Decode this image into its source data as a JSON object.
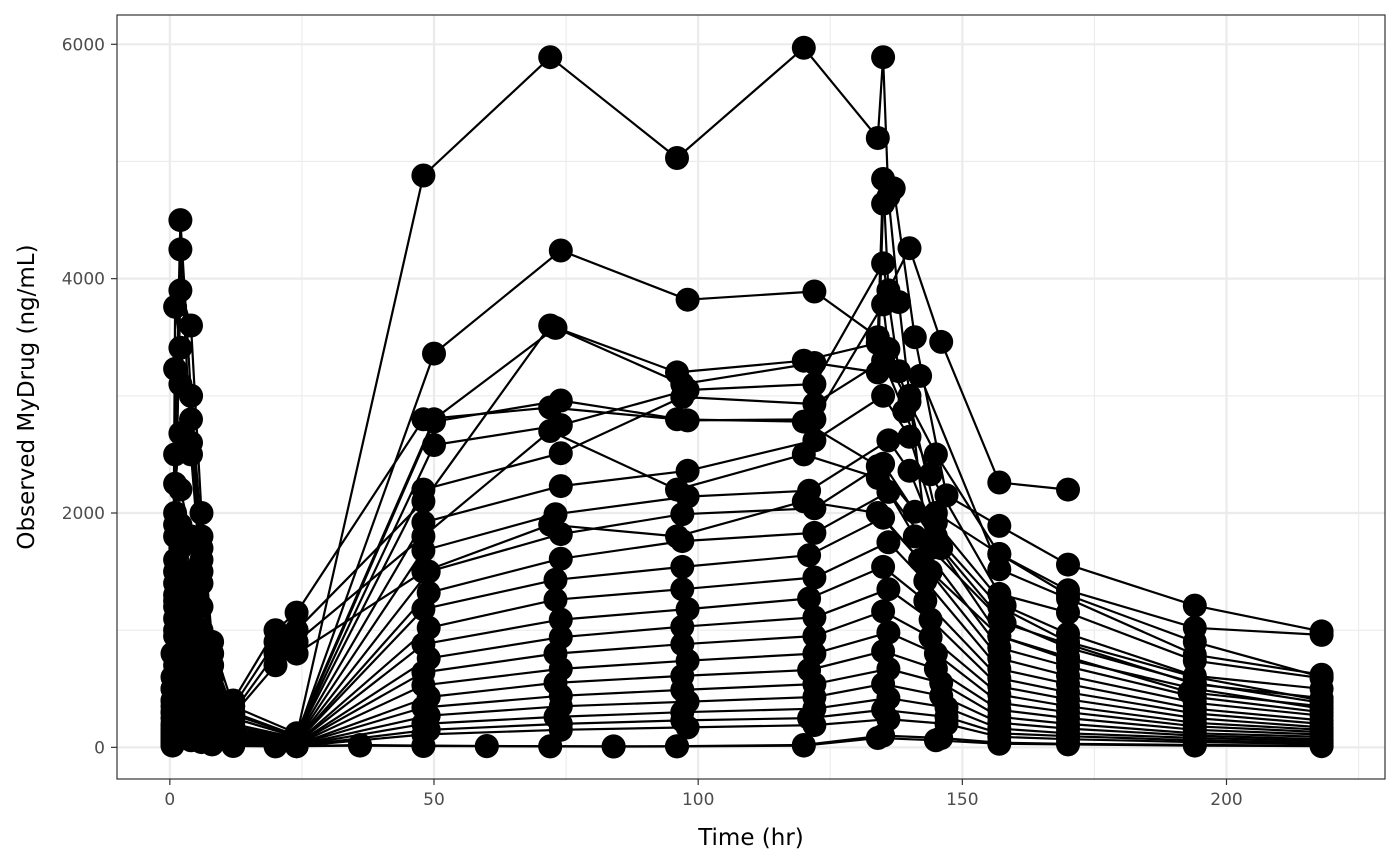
{
  "chart_data": {
    "type": "line",
    "xlabel": "Time (hr)",
    "ylabel": "Observed MyDrug (ng/mL)",
    "xlim": [
      -10,
      230
    ],
    "ylim": [
      -270,
      6250
    ],
    "x_ticks": [
      0,
      50,
      100,
      150,
      200
    ],
    "y_ticks": [
      0,
      2000,
      4000,
      6000
    ],
    "grid": true,
    "legend": "none",
    "colors": {
      "line": "#000000",
      "point": "#000000",
      "grid": "#ebebeb",
      "panel_border": "#333333"
    },
    "series": [
      {
        "x": [
          0.5,
          1,
          2,
          4,
          6,
          8,
          12,
          24,
          48,
          72,
          96,
          120,
          134,
          135,
          136,
          138,
          140,
          144
        ],
        "y": [
          800,
          2500,
          4500,
          3000,
          1800,
          800,
          300,
          100,
          4880,
          5890,
          5030,
          5970,
          5200,
          5890,
          4700,
          3800,
          3000,
          1500
        ]
      },
      {
        "x": [
          0.5,
          1,
          2,
          4,
          6,
          8,
          12,
          24,
          50,
          74,
          98,
          122,
          134,
          135,
          136,
          140,
          146,
          157,
          170
        ],
        "y": [
          600,
          2000,
          4250,
          2600,
          1500,
          700,
          250,
          90,
          3360,
          4240,
          3820,
          3890,
          3500,
          4850,
          3900,
          4260,
          3460,
          2260,
          2200
        ]
      },
      {
        "x": [
          0.5,
          1,
          2,
          4,
          6,
          8,
          12,
          24,
          50,
          73,
          97,
          122,
          134,
          135,
          137,
          141,
          147,
          157,
          170,
          194,
          218
        ],
        "y": [
          500,
          1800,
          3900,
          3600,
          2000,
          900,
          350,
          120,
          2800,
          3580,
          3100,
          3280,
          3200,
          4640,
          4770,
          3500,
          2150,
          1890,
          1560,
          1210,
          990
        ]
      },
      {
        "x": [
          0.5,
          1,
          2,
          4,
          6,
          8,
          12,
          24,
          50,
          74,
          98,
          122,
          135,
          136,
          140,
          145,
          157,
          170,
          194,
          218
        ],
        "y": [
          400,
          3760,
          3410,
          2800,
          1600,
          700,
          280,
          100,
          2780,
          2960,
          2790,
          2800,
          3780,
          3400,
          2950,
          2000,
          1650,
          1340,
          1020,
          960
        ]
      },
      {
        "x": [
          0.5,
          1,
          2,
          4,
          6,
          8,
          12,
          24,
          50,
          74,
          98,
          122,
          135,
          138,
          142,
          157,
          170,
          194,
          218
        ],
        "y": [
          300,
          3230,
          3100,
          3000,
          1700,
          800,
          250,
          90,
          2580,
          2750,
          3050,
          3100,
          4130,
          3210,
          3170,
          1520,
          1270,
          790,
          620
        ]
      },
      {
        "x": [
          0.5,
          1,
          2,
          4,
          6,
          8,
          12,
          24,
          48,
          74,
          97,
          122,
          135,
          139,
          144,
          157,
          170,
          194,
          218
        ],
        "y": [
          250,
          2250,
          2680,
          2500,
          1400,
          600,
          200,
          80,
          2200,
          2510,
          2990,
          2930,
          3300,
          2870,
          2330,
          1310,
          1150,
          740,
          590
        ]
      },
      {
        "x": [
          0.5,
          1,
          2,
          4,
          6,
          8,
          12,
          24,
          48,
          74,
          98,
          122,
          135,
          140,
          145,
          158,
          170,
          194,
          218
        ],
        "y": [
          200,
          1900,
          2200,
          1800,
          1200,
          500,
          180,
          70,
          1920,
          2230,
          2360,
          2620,
          3000,
          2650,
          1920,
          1210,
          970,
          610,
          500
        ]
      },
      {
        "x": [
          0.5,
          1,
          2,
          4,
          6,
          8,
          12,
          24,
          48,
          73,
          98,
          121,
          136,
          140,
          146,
          158,
          170,
          194,
          218
        ],
        "y": [
          180,
          1600,
          1900,
          1500,
          1000,
          450,
          160,
          60,
          1680,
          1990,
          2140,
          2190,
          2620,
          2360,
          1700,
          1060,
          880,
          540,
          420
        ]
      },
      {
        "x": [
          0.5,
          1,
          2,
          4,
          6,
          8,
          12,
          24,
          49,
          74,
          97,
          122,
          135,
          141,
          157,
          170,
          193,
          218
        ],
        "y": [
          150,
          1400,
          1700,
          1300,
          900,
          380,
          140,
          55,
          1500,
          1820,
          1990,
          2040,
          2420,
          2010,
          950,
          770,
          470,
          350
        ]
      },
      {
        "x": [
          0.5,
          1,
          2,
          4,
          6,
          8,
          12,
          24,
          49,
          74,
          97,
          122,
          136,
          141,
          157,
          170,
          194,
          218
        ],
        "y": [
          140,
          1250,
          1500,
          1150,
          800,
          330,
          120,
          50,
          1320,
          1610,
          1760,
          1830,
          2180,
          1800,
          850,
          690,
          430,
          300
        ]
      },
      {
        "x": [
          0.5,
          1,
          2,
          4,
          6,
          8,
          12,
          24,
          48,
          73,
          97,
          121,
          135,
          142,
          157,
          170,
          194,
          218
        ],
        "y": [
          120,
          1100,
          1320,
          1000,
          700,
          290,
          100,
          45,
          1180,
          1430,
          1540,
          1640,
          1960,
          1600,
          760,
          610,
          380,
          270
        ]
      },
      {
        "x": [
          0.5,
          1,
          2,
          4,
          6,
          8,
          12,
          24,
          49,
          73,
          97,
          122,
          136,
          143,
          157,
          170,
          194,
          218
        ],
        "y": [
          100,
          950,
          1150,
          880,
          620,
          250,
          90,
          40,
          1020,
          1260,
          1350,
          1450,
          1750,
          1420,
          670,
          540,
          330,
          230
        ]
      },
      {
        "x": [
          0.5,
          1,
          2,
          4,
          6,
          8,
          12,
          24,
          48,
          74,
          98,
          121,
          135,
          143,
          157,
          170,
          194,
          218
        ],
        "y": [
          90,
          820,
          1000,
          760,
          540,
          220,
          80,
          35,
          880,
          1090,
          1180,
          1270,
          1540,
          1250,
          590,
          470,
          290,
          200
        ]
      },
      {
        "x": [
          0.5,
          1,
          2,
          4,
          6,
          8,
          12,
          24,
          49,
          74,
          97,
          122,
          136,
          144,
          157,
          170,
          194,
          218
        ],
        "y": [
          80,
          700,
          860,
          650,
          460,
          190,
          70,
          30,
          760,
          940,
          1030,
          1110,
          1350,
          1090,
          520,
          410,
          250,
          170
        ]
      },
      {
        "x": [
          0.5,
          1,
          2,
          4,
          6,
          8,
          12,
          24,
          48,
          73,
          97,
          122,
          135,
          144,
          157,
          170,
          194,
          218
        ],
        "y": [
          70,
          590,
          730,
          550,
          390,
          160,
          60,
          28,
          640,
          800,
          880,
          950,
          1160,
          940,
          450,
          350,
          210,
          150
        ]
      },
      {
        "x": [
          0.5,
          1,
          2,
          4,
          6,
          8,
          12,
          24,
          48,
          74,
          98,
          122,
          136,
          145,
          157,
          170,
          194,
          218
        ],
        "y": [
          60,
          490,
          610,
          460,
          330,
          140,
          50,
          25,
          530,
          670,
          740,
          800,
          980,
          800,
          380,
          300,
          180,
          130
        ]
      },
      {
        "x": [
          0.5,
          1,
          2,
          4,
          6,
          8,
          12,
          24,
          49,
          73,
          97,
          121,
          135,
          145,
          157,
          170,
          194,
          218
        ],
        "y": [
          50,
          400,
          500,
          380,
          270,
          120,
          45,
          22,
          430,
          550,
          610,
          660,
          820,
          670,
          320,
          250,
          150,
          110
        ]
      },
      {
        "x": [
          0.5,
          1,
          2,
          4,
          6,
          8,
          12,
          24,
          48,
          74,
          97,
          122,
          136,
          146,
          157,
          170,
          194,
          218
        ],
        "y": [
          45,
          320,
          400,
          300,
          220,
          100,
          40,
          20,
          340,
          440,
          490,
          540,
          670,
          550,
          260,
          200,
          120,
          90
        ]
      },
      {
        "x": [
          0.5,
          1,
          2,
          4,
          6,
          8,
          12,
          24,
          49,
          74,
          98,
          122,
          135,
          146,
          157,
          170,
          194,
          218
        ],
        "y": [
          40,
          250,
          310,
          240,
          170,
          80,
          35,
          18,
          270,
          350,
          390,
          430,
          540,
          440,
          210,
          160,
          100,
          70
        ]
      },
      {
        "x": [
          0.5,
          1,
          2,
          4,
          6,
          8,
          12,
          24,
          48,
          73,
          97,
          122,
          136,
          147,
          157,
          170,
          194,
          218
        ],
        "y": [
          35,
          190,
          240,
          180,
          130,
          65,
          30,
          15,
          200,
          260,
          300,
          330,
          420,
          340,
          160,
          120,
          80,
          55
        ]
      },
      {
        "x": [
          0.5,
          1,
          2,
          4,
          6,
          8,
          12,
          24,
          49,
          74,
          97,
          121,
          135,
          147,
          157,
          170,
          194,
          218
        ],
        "y": [
          30,
          140,
          180,
          140,
          100,
          50,
          25,
          12,
          150,
          200,
          230,
          250,
          320,
          260,
          120,
          95,
          60,
          40
        ]
      },
      {
        "x": [
          0.5,
          1,
          2,
          4,
          6,
          8,
          12,
          24,
          48,
          74,
          98,
          122,
          136,
          147,
          157,
          170,
          194,
          218
        ],
        "y": [
          25,
          100,
          130,
          100,
          70,
          40,
          20,
          10,
          110,
          150,
          170,
          190,
          240,
          200,
          90,
          70,
          45,
          30
        ]
      },
      {
        "x": [
          0.5,
          1,
          2,
          4,
          6,
          8,
          12,
          24,
          36,
          48,
          60,
          72,
          84,
          96,
          120,
          135,
          146,
          157,
          170,
          194,
          218
        ],
        "y": [
          20,
          80,
          100,
          80,
          60,
          30,
          15,
          10,
          20,
          15,
          12,
          10,
          8,
          10,
          20,
          100,
          80,
          40,
          30,
          20,
          15
        ]
      },
      {
        "x": [
          0.5,
          1,
          2,
          4,
          6,
          8,
          12,
          20,
          24,
          36,
          48,
          60,
          72,
          84,
          96,
          120,
          134,
          145,
          157,
          170,
          194,
          218
        ],
        "y": [
          15,
          60,
          80,
          60,
          45,
          25,
          12,
          8,
          10,
          15,
          12,
          10,
          8,
          7,
          8,
          15,
          80,
          60,
          30,
          25,
          15,
          10
        ]
      },
      {
        "x": [
          0.5,
          1,
          2,
          4,
          6,
          8,
          12,
          20,
          24,
          48,
          72,
          96,
          120,
          134,
          145,
          157,
          170,
          194,
          218
        ],
        "y": [
          500,
          1500,
          1700,
          1200,
          800,
          600,
          400,
          1000,
          1150,
          2800,
          2900,
          2800,
          2780,
          2400,
          1800,
          1200,
          900,
          600,
          400
        ]
      },
      {
        "x": [
          0.5,
          1,
          2,
          4,
          6,
          8,
          12,
          20,
          24,
          48,
          72,
          96,
          120,
          134,
          145,
          157,
          170,
          194,
          218
        ],
        "y": [
          400,
          1300,
          1500,
          1100,
          700,
          500,
          350,
          900,
          1000,
          2100,
          3600,
          3200,
          3300,
          3450,
          2500,
          1650,
          1300,
          900,
          600
        ]
      },
      {
        "x": [
          0.5,
          1,
          2,
          4,
          6,
          8,
          12,
          20,
          24,
          48,
          72,
          96,
          120,
          134,
          144,
          157,
          170,
          194,
          218
        ],
        "y": [
          350,
          1200,
          1400,
          1000,
          650,
          450,
          300,
          800,
          900,
          1800,
          2700,
          2200,
          2500,
          2300,
          1700,
          1100,
          850,
          550,
          380
        ]
      },
      {
        "x": [
          0.5,
          1,
          2,
          4,
          6,
          8,
          12,
          20,
          24,
          48,
          72,
          96,
          120,
          134,
          144,
          157,
          170,
          194,
          218
        ],
        "y": [
          300,
          1000,
          1200,
          900,
          600,
          400,
          280,
          700,
          800,
          1500,
          1900,
          1800,
          2100,
          2000,
          1500,
          950,
          750,
          500,
          330
        ]
      }
    ]
  }
}
